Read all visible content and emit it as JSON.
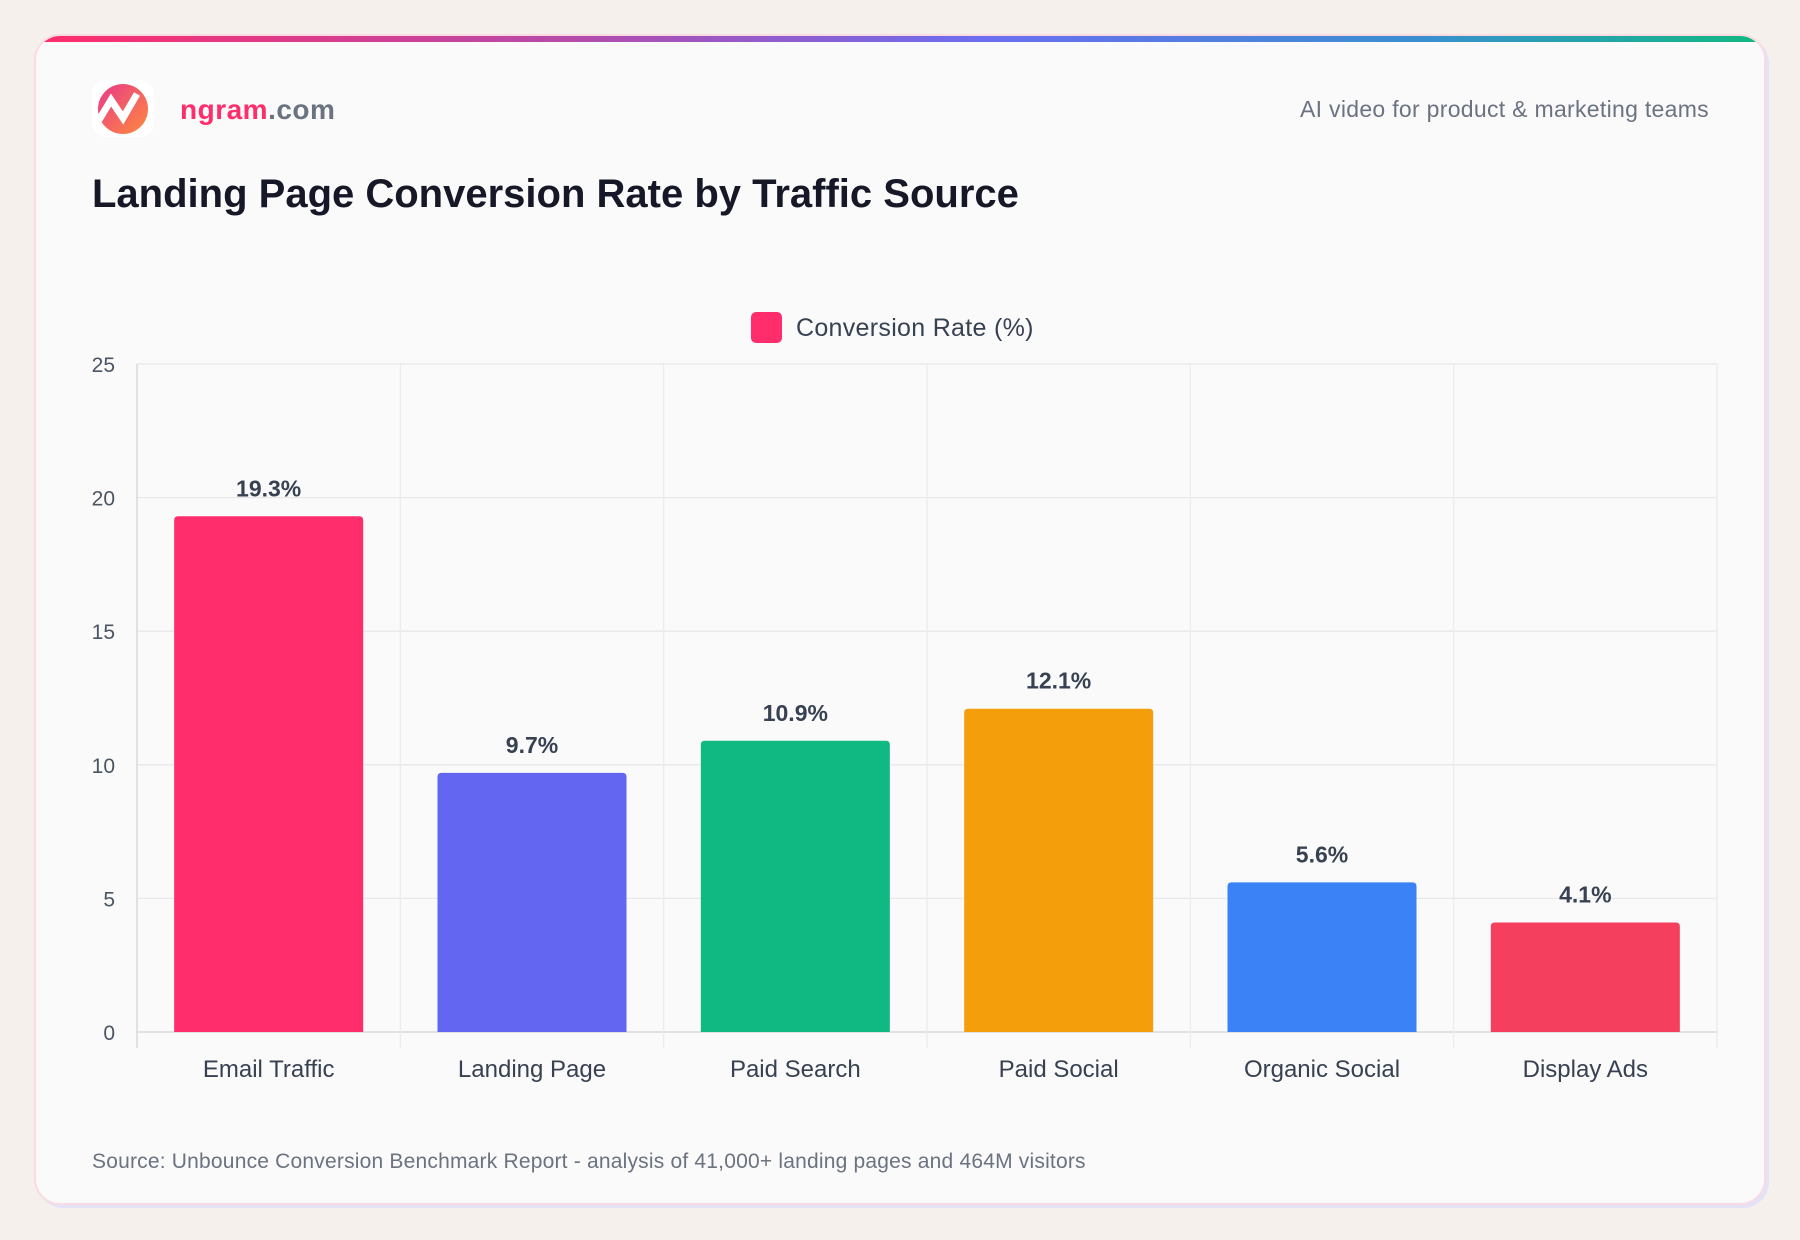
{
  "header": {
    "brand_name": "ngram",
    "brand_suffix": ".com",
    "tagline": "AI video for product & marketing teams",
    "logo_icon": "ngram-logo-icon"
  },
  "footer": {
    "source": "Source: Unbounce Conversion Benchmark Report - analysis of 41,000+ landing pages and 464M visitors"
  },
  "chart_data": {
    "type": "bar",
    "title": "Landing Page Conversion Rate by Traffic Source",
    "xlabel": "",
    "ylabel": "",
    "categories": [
      "Email Traffic",
      "Landing Page",
      "Paid Search",
      "Paid Social",
      "Organic Social",
      "Display Ads"
    ],
    "series": [
      {
        "name": "Conversion Rate (%)",
        "values": [
          19.3,
          9.7,
          10.9,
          12.1,
          5.6,
          4.1
        ]
      }
    ],
    "data_labels": [
      "19.3%",
      "9.7%",
      "10.9%",
      "12.1%",
      "5.6%",
      "4.1%"
    ],
    "bar_colors": [
      "#ff2d6b",
      "#6366f1",
      "#10b981",
      "#f59e0b",
      "#3b82f6",
      "#f43f5e"
    ],
    "legend_color": "#ff2d6b",
    "ylim": [
      0,
      25
    ],
    "yticks": [
      0,
      5,
      10,
      15,
      20,
      25
    ],
    "grid": true,
    "legend_position": "top-center"
  }
}
